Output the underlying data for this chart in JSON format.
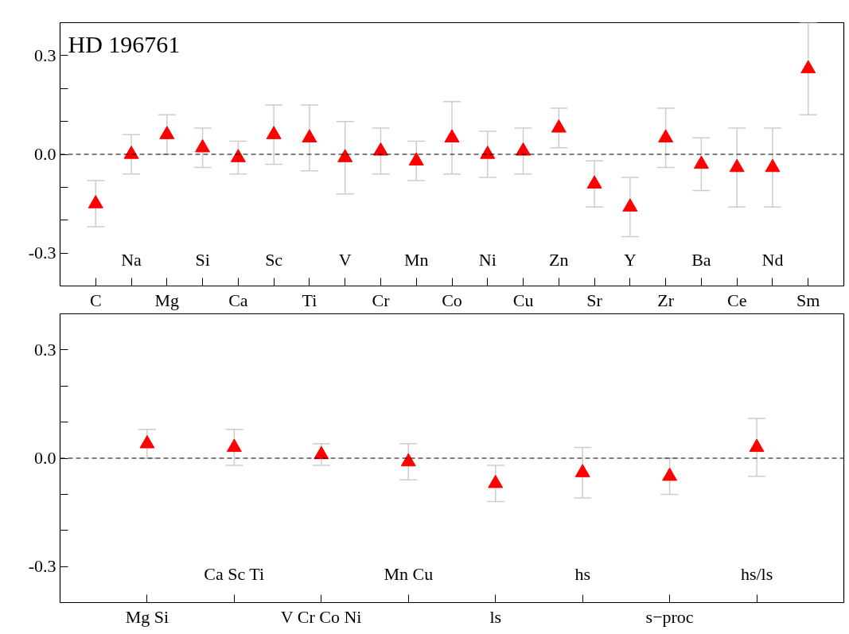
{
  "chart_data": [
    {
      "type": "scatter",
      "title": "HD 196761",
      "categories": [
        "C",
        "Na",
        "Mg",
        "Si",
        "Ca",
        "Sc",
        "Ti",
        "V",
        "Cr",
        "Mn",
        "Co",
        "Ni",
        "Cu",
        "Zn",
        "Sr",
        "Y",
        "Zr",
        "Ba",
        "Ce",
        "Nd",
        "Sm"
      ],
      "values": [
        -0.15,
        0.0,
        0.06,
        0.02,
        -0.01,
        0.06,
        0.05,
        -0.01,
        0.01,
        -0.02,
        0.05,
        0.0,
        0.01,
        0.08,
        -0.09,
        -0.16,
        0.05,
        -0.03,
        -0.04,
        -0.04,
        0.26
      ],
      "errors": [
        0.07,
        0.06,
        0.06,
        0.06,
        0.05,
        0.09,
        0.1,
        0.11,
        0.07,
        0.06,
        0.11,
        0.07,
        0.07,
        0.06,
        0.07,
        0.09,
        0.09,
        0.08,
        0.12,
        0.12,
        0.14
      ],
      "color": "#ff0000",
      "marker": "triangle",
      "ylim": [
        -0.4,
        0.4
      ],
      "yticks": [
        {
          "value": -0.3,
          "label": "-0.3"
        },
        {
          "value": -0.2,
          "label": null
        },
        {
          "value": -0.1,
          "label": null
        },
        {
          "value": 0.0,
          "label": "0.0"
        },
        {
          "value": 0.1,
          "label": null
        },
        {
          "value": 0.2,
          "label": null
        },
        {
          "value": 0.3,
          "label": "0.3"
        }
      ],
      "ref_lines": [
        {
          "axis": "y",
          "value": 0,
          "label": null,
          "line_style": "dashed",
          "color": "#000000"
        }
      ],
      "grid": false
    },
    {
      "type": "scatter",
      "categories": [
        "Mg Si",
        "Ca Sc Ti",
        "V Cr Co Ni",
        "Mn Cu",
        "ls",
        "hs",
        "s−proc",
        "hs/ls"
      ],
      "values": [
        0.04,
        0.03,
        0.01,
        -0.01,
        -0.07,
        -0.04,
        -0.05,
        0.03
      ],
      "errors": [
        0.04,
        0.05,
        0.03,
        0.05,
        0.05,
        0.07,
        0.05,
        0.08
      ],
      "color": "#ff0000",
      "marker": "triangle",
      "ylim": [
        -0.4,
        0.4
      ],
      "yticks": [
        {
          "value": -0.3,
          "label": "-0.3"
        },
        {
          "value": -0.2,
          "label": null
        },
        {
          "value": -0.1,
          "label": null
        },
        {
          "value": 0.0,
          "label": "0.0"
        },
        {
          "value": 0.1,
          "label": null
        },
        {
          "value": 0.2,
          "label": null
        },
        {
          "value": 0.3,
          "label": "0.3"
        }
      ],
      "ref_lines": [
        {
          "axis": "y",
          "value": 0,
          "label": null,
          "line_style": "dashed",
          "color": "#000000"
        }
      ],
      "grid": false
    }
  ]
}
